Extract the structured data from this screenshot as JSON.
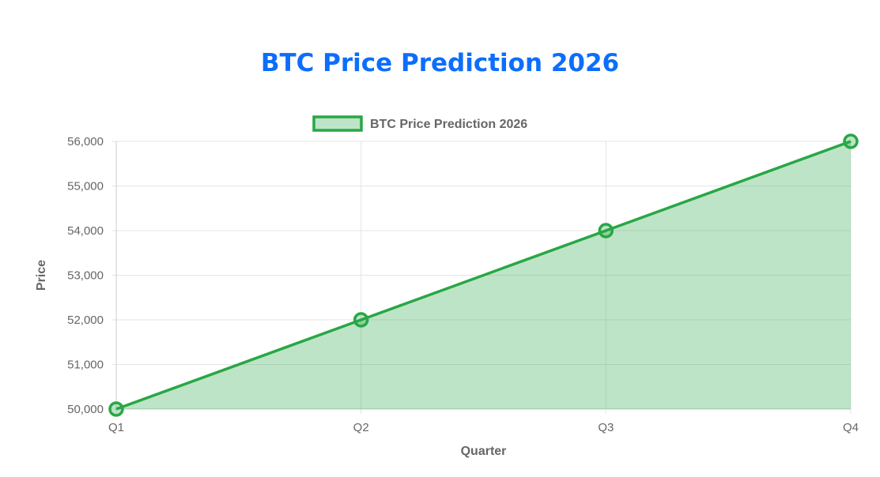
{
  "title": "BTC Price Prediction 2026",
  "chart_data": {
    "type": "area",
    "title": "BTC Price Prediction 2026",
    "categories": [
      "Q1",
      "Q2",
      "Q3",
      "Q4"
    ],
    "series": [
      {
        "name": "BTC Price Prediction 2026",
        "values": [
          50000,
          52000,
          54000,
          56000
        ]
      }
    ],
    "xlabel": "Quarter",
    "ylabel": "Price",
    "ylim": [
      50000,
      56000
    ],
    "yticks": [
      "50,000",
      "51,000",
      "52,000",
      "53,000",
      "54,000",
      "55,000",
      "56,000"
    ],
    "grid": true,
    "legend": "top",
    "colors": {
      "line": "#28a745",
      "fill": "rgba(40,167,69,0.3)",
      "title": "#0d6efd"
    }
  }
}
